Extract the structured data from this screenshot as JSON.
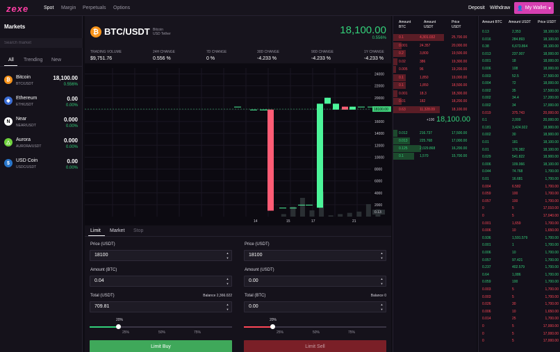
{
  "nav": {
    "logo": "zexe",
    "links": [
      "Spot",
      "Margin",
      "Perpetuals",
      "Options"
    ],
    "deposit": "Deposit",
    "withdraw": "Withdraw",
    "wallet": "My Wallet"
  },
  "markets": {
    "title": "Markets",
    "search_placeholder": "Search market",
    "tabs": [
      "All",
      "Trending",
      "New"
    ],
    "coins": [
      {
        "name": "Bitcoin",
        "pair": "BTC/USDT",
        "price": "18,100.00",
        "change": "0.556%",
        "color": "#f7931a",
        "glyph": "₿"
      },
      {
        "name": "Ethereum",
        "pair": "ETH/USDT",
        "price": "0.00",
        "change": "0.00%",
        "color": "#3c6ed6",
        "glyph": "◆"
      },
      {
        "name": "Near",
        "pair": "NEAR/USDT",
        "price": "0.000",
        "change": "0.00%",
        "color": "#ffffff",
        "glyph": "N"
      },
      {
        "name": "Aurora",
        "pair": "AURORA/USDT",
        "price": "0.000",
        "change": "0.00%",
        "color": "#6fd23c",
        "glyph": "△"
      },
      {
        "name": "USD Coin",
        "pair": "USDC/USDT",
        "price": "0.00",
        "change": "0.00%",
        "color": "#2775ca",
        "glyph": "$"
      }
    ]
  },
  "header": {
    "pair": "BTC/USDT",
    "sub1": "Bitcoin",
    "sub2": "USD Tether",
    "price": "18,100.00",
    "change": "0.556%",
    "stats": [
      {
        "label": "TRADING VOLUME",
        "value": "$9,751.76"
      },
      {
        "label": "24H CHANGE",
        "value": "0.556 %"
      },
      {
        "label": "7D CHANGE",
        "value": "0 %"
      },
      {
        "label": "30D CHANGE",
        "value": "-4.233 %"
      },
      {
        "label": "90D CHANGE",
        "value": "-4.233 %"
      },
      {
        "label": "1Y CHANGE",
        "value": "-4.233 %"
      }
    ]
  },
  "chart_data": {
    "type": "candlestick",
    "y_ticks": [
      24000,
      22000,
      20000,
      18000,
      16000,
      14000,
      12000,
      10000,
      8000,
      6000,
      4000,
      2000
    ],
    "x_ticks": [
      "14",
      "15",
      "17",
      "21"
    ],
    "last_price_label": "18100.00",
    "volume_label": "0.13",
    "ylim": [
      0,
      25000
    ],
    "candles": [
      {
        "o": 18500,
        "c": 18500,
        "h": 18500,
        "l": 18500
      },
      {
        "o": 18000,
        "c": 18000,
        "h": 18000,
        "l": 18000
      },
      {
        "o": 18000,
        "c": 18000,
        "h": 18000,
        "l": 18000
      },
      {
        "o": 18000,
        "c": 18000,
        "h": 18000,
        "l": 18000
      },
      {
        "o": 18000,
        "c": 1000,
        "h": 18000,
        "l": 1000
      },
      {
        "o": 1500,
        "c": 1500,
        "h": 1500,
        "l": 1500
      },
      {
        "o": 1500,
        "c": 1500,
        "h": 1500,
        "l": 1500
      },
      {
        "o": 2000,
        "c": 2000,
        "h": 2000,
        "l": 2000
      },
      {
        "o": 2000,
        "c": 2000,
        "h": 2000,
        "l": 2000
      },
      {
        "o": 1500,
        "c": 19000,
        "h": 19000,
        "l": 1500
      },
      {
        "o": 19000,
        "c": 20000,
        "h": 20000,
        "l": 19000
      },
      {
        "o": 18000,
        "c": 19000,
        "h": 19000,
        "l": 18000
      },
      {
        "o": 18500,
        "c": 18000,
        "h": 18500,
        "l": 18000
      },
      {
        "o": 18000,
        "c": 18500,
        "h": 18500,
        "l": 18000
      },
      {
        "o": 18500,
        "c": 18500,
        "h": 18500,
        "l": 18500
      },
      {
        "o": 18500,
        "c": 18500,
        "h": 18500,
        "l": 18500
      }
    ],
    "volumes": [
      0.0,
      0.0,
      0.0,
      0.0,
      0.0,
      0.02,
      0.08,
      0.15,
      0.05,
      0.2,
      0.01,
      0.02,
      0.03,
      0.04,
      0.1,
      0.06
    ]
  },
  "form": {
    "tabs": [
      "Limit",
      "Market",
      "Stop"
    ],
    "buy": {
      "price_label": "Price (USDT)",
      "price": "18100",
      "amount_label": "Amount (BTC)",
      "amount": "0.04",
      "total_label": "Total (USDT)",
      "total": "709.81",
      "balance": "Balance 2,366.022",
      "pct": "20%",
      "pct_value": 0.2,
      "button": "Limit Buy"
    },
    "sell": {
      "price_label": "Price (USDT)",
      "price": "18100",
      "amount_label": "Amount (USDT)",
      "amount": "0.00",
      "total_label": "Total (BTC)",
      "total": "0.00",
      "balance": "Balance 0",
      "pct": "20%",
      "pct_value": 0.2,
      "button": "Limit Sell"
    },
    "marks": [
      "25%",
      "50%",
      "75%"
    ]
  },
  "orderbook": {
    "headers": {
      "amount": "Amount",
      "btc": "BTC",
      "amount2": "Amount",
      "usdt": "USDT",
      "price": "Price",
      "usdt2": "USDT"
    },
    "asks": [
      [
        "0.1",
        "4,301.032",
        "25,700.00",
        0.6
      ],
      [
        "0.001",
        "24.357",
        "20,000.00",
        0.1
      ],
      [
        "0.2",
        "3,800",
        "19,500.00",
        0.15
      ],
      [
        "0.02",
        "386",
        "19,300.00",
        0.05
      ],
      [
        "0.005",
        "96",
        "19,200.00",
        0.03
      ],
      [
        "0.1",
        "1,850",
        "19,000.00",
        0.15
      ],
      [
        "0.1",
        "1,850",
        "18,500.00",
        0.15
      ],
      [
        "0.001",
        "18.3",
        "18,300.00",
        0.05
      ],
      [
        "0.01",
        "182",
        "18,200.00",
        0.1
      ],
      [
        "0.63",
        "11,328.09",
        "18,100.00",
        0.55
      ]
    ],
    "mid_prefix": "+100",
    "mid_price": "18,100.00",
    "bids": [
      [
        "0.012",
        "216.737",
        "17,500.00",
        0.05
      ],
      [
        "0.013",
        "225.768",
        "17,000.00",
        0.2
      ],
      [
        "0.125",
        "2,029.868",
        "16,200.00",
        0.33
      ],
      [
        "0.1",
        "1,570",
        "15,700.00",
        0.25
      ]
    ]
  },
  "trades": {
    "headers": [
      "Amount BTC",
      "Amount USDT",
      "Price USDT"
    ],
    "rows": [
      [
        "0.13",
        "2,353",
        "18,100.00",
        "g"
      ],
      [
        "0.016",
        "284.893",
        "18,100.00",
        "g"
      ],
      [
        "0.38",
        "6,673.864",
        "18,100.00",
        "g"
      ],
      [
        "0.013",
        "237.007",
        "18,000.00",
        "g"
      ],
      [
        "0.001",
        "18",
        "18,000.00",
        "g"
      ],
      [
        "0.006",
        "108",
        "18,000.00",
        "g"
      ],
      [
        "0.003",
        "52.5",
        "17,500.00",
        "g"
      ],
      [
        "0.004",
        "72",
        "18,000.00",
        "g"
      ],
      [
        "0.002",
        "35",
        "17,500.00",
        "g"
      ],
      [
        "0.002",
        "34.4",
        "17,200.00",
        "g"
      ],
      [
        "0.002",
        "34",
        "17,000.00",
        "g"
      ],
      [
        "0.019",
        "375.743",
        "20,000.00",
        "r"
      ],
      [
        "0.1",
        "2,000",
        "20,000.00",
        "g"
      ],
      [
        "0.181",
        "3,424.922",
        "18,900.00",
        "g"
      ],
      [
        "0.002",
        "30",
        "18,900.00",
        "g"
      ],
      [
        "0.01",
        "181",
        "18,100.00",
        "g"
      ],
      [
        "0.01",
        "176.382",
        "18,100.00",
        "g"
      ],
      [
        "0.029",
        "541.822",
        "18,900.00",
        "g"
      ],
      [
        "0.006",
        "109.066",
        "18,100.00",
        "g"
      ],
      [
        "0.044",
        "74.768",
        "1,700.00",
        "g"
      ],
      [
        "0.01",
        "16.681",
        "1,700.00",
        "g"
      ],
      [
        "0.004",
        "6.582",
        "1,700.00",
        "r"
      ],
      [
        "0.059",
        "100",
        "1,700.00",
        "r"
      ],
      [
        "0.057",
        "100",
        "1,700.00",
        "r"
      ],
      [
        "0",
        "5",
        "17,010.00",
        "r"
      ],
      [
        "0",
        "5",
        "17,040.00",
        "r"
      ],
      [
        "0.001",
        "1,659",
        "1,700.00",
        "r"
      ],
      [
        "0.006",
        "10",
        "1,650.00",
        "r"
      ],
      [
        "0.936",
        "1,591.579",
        "1,700.00",
        "g"
      ],
      [
        "0.001",
        "1",
        "1,700.00",
        "g"
      ],
      [
        "0.006",
        "10",
        "1,700.00",
        "g"
      ],
      [
        "0.057",
        "97.421",
        "1,700.00",
        "g"
      ],
      [
        "0.237",
        "402.579",
        "1,700.00",
        "g"
      ],
      [
        "0.64",
        "1,086",
        "1,700.00",
        "g"
      ],
      [
        "0.059",
        "100",
        "1,700.00",
        "g"
      ],
      [
        "0.003",
        "5",
        "1,700.00",
        "r"
      ],
      [
        "0.003",
        "5",
        "1,700.00",
        "r"
      ],
      [
        "0.026",
        "30",
        "1,700.00",
        "r"
      ],
      [
        "0.006",
        "10",
        "1,650.00",
        "r"
      ],
      [
        "0.014",
        "25",
        "1,700.00",
        "r"
      ],
      [
        "0",
        "5",
        "17,000.00",
        "r"
      ],
      [
        "0",
        "5",
        "17,000.00",
        "r"
      ],
      [
        "0",
        "5",
        "17,000.00",
        "r"
      ]
    ]
  }
}
